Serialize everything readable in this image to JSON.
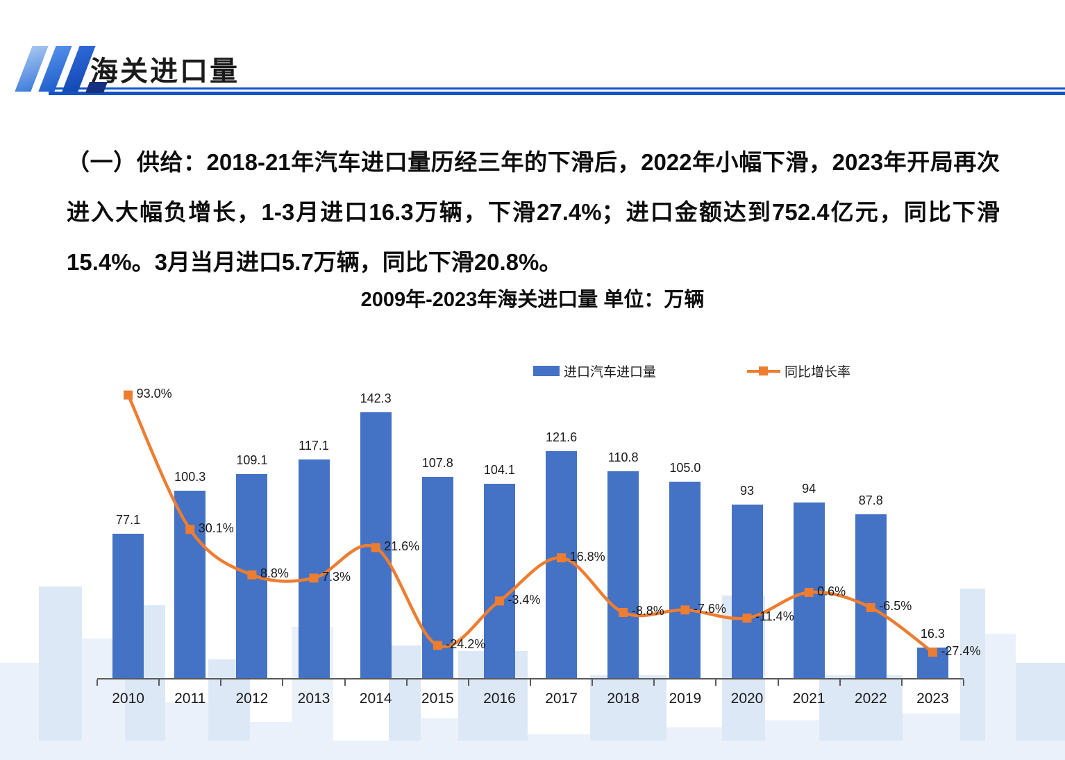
{
  "header": {
    "title": "海关进口量"
  },
  "body": {
    "paragraph": "（一）供给：2018-21年汽车进口量历经三年的下滑后，2022年小幅下滑，2023年开局再次进入大幅负增长，1-3月进口16.3万辆，下滑27.4%；进口金额达到752.4亿元，同比下滑15.4%。3月当月进口5.7万辆，同比下滑20.8%。"
  },
  "chart_data": {
    "type": "bar+line",
    "title": "2009年-2023年海关进口量  单位：万辆",
    "categories": [
      "2010",
      "2011",
      "2012",
      "2013",
      "2014",
      "2015",
      "2016",
      "2017",
      "2018",
      "2019",
      "2020",
      "2021",
      "2022",
      "2023"
    ],
    "series": [
      {
        "name": "进口汽车进口量",
        "type": "bar",
        "unit": "万辆",
        "color": "#4472C4",
        "values": [
          77.1,
          100.3,
          109.1,
          117.1,
          142.3,
          107.8,
          104.1,
          121.6,
          110.8,
          105.0,
          93,
          94,
          87.8,
          16.3
        ],
        "labels": [
          "77.1",
          "100.3",
          "109.1",
          "117.1",
          "142.3",
          "107.8",
          "104.1",
          "121.6",
          "110.8",
          "105.0",
          "93",
          "94",
          "87.8",
          "16.3"
        ],
        "axis_range": [
          0,
          158.6
        ]
      },
      {
        "name": "同比增长率",
        "type": "line",
        "unit": "%",
        "color": "#ED7D31",
        "values": [
          93.0,
          30.1,
          8.8,
          7.3,
          21.6,
          -24.2,
          -3.4,
          16.8,
          -8.8,
          -7.6,
          -11.4,
          0.6,
          -6.5,
          -27.4
        ],
        "labels": [
          "93.0%",
          "30.1%",
          "8.8%",
          "7.3%",
          "21.6%",
          "-24.2%",
          "-3.4%",
          "16.8%",
          "-8.8%",
          "-7.6%",
          "-11.4%",
          "0.6%",
          "-6.5%",
          "-27.4%"
        ],
        "axis_range": [
          -39.5,
          99.2
        ]
      }
    ],
    "legend_position": "top",
    "grid": false,
    "x_axis": {
      "tick_marks": true,
      "line_color": "#595959"
    }
  },
  "decor": {
    "skyline_colors": [
      "#eaf1fa",
      "#dde8f6"
    ],
    "rule_color": "#1353c4"
  }
}
